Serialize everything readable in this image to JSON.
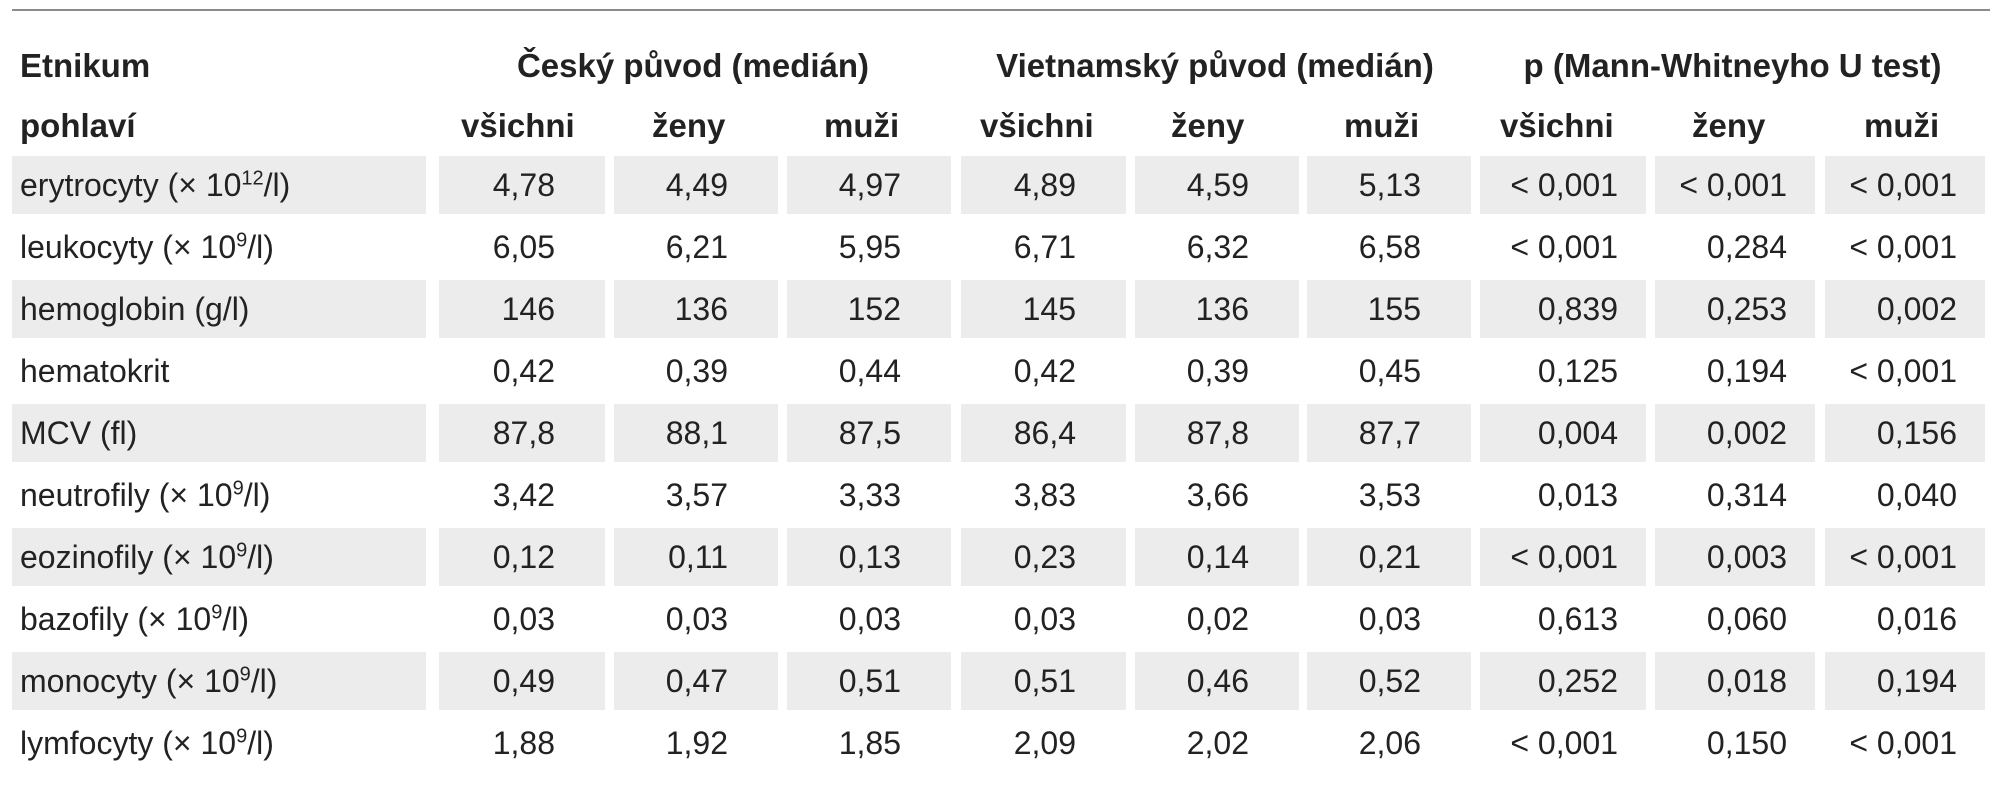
{
  "header": {
    "col0_line1": "Etnikum",
    "col0_line2": "pohlaví",
    "groups": [
      "Český původ (medián)",
      "Vietnamský původ (medián)",
      "p (Mann-Whitneyho U test)"
    ],
    "subheaders": [
      "všichni",
      "ženy",
      "muži",
      "všichni",
      "ženy",
      "muži",
      "všichni",
      "ženy",
      "muži"
    ]
  },
  "rows": [
    {
      "label": "erytrocyty (× 10",
      "label_sup": "12",
      "label_tail": "/l)",
      "values": [
        "4,78",
        "4,49",
        "4,97",
        "4,89",
        "4,59",
        "5,13",
        "< 0,001",
        "< 0,001",
        "< 0,001"
      ]
    },
    {
      "label": "leukocyty (× 10",
      "label_sup": "9",
      "label_tail": "/l)",
      "values": [
        "6,05",
        "6,21",
        "5,95",
        "6,71",
        "6,32",
        "6,58",
        "< 0,001",
        "0,284",
        "< 0,001"
      ]
    },
    {
      "label": "hemoglobin (g/l)",
      "label_sup": "",
      "label_tail": "",
      "values": [
        "146",
        "136",
        "152",
        "145",
        "136",
        "155",
        "0,839",
        "0,253",
        "0,002"
      ]
    },
    {
      "label": "hematokrit",
      "label_sup": "",
      "label_tail": "",
      "values": [
        "0,42",
        "0,39",
        "0,44",
        "0,42",
        "0,39",
        "0,45",
        "0,125",
        "0,194",
        "< 0,001"
      ]
    },
    {
      "label": "MCV (fl)",
      "label_sup": "",
      "label_tail": "",
      "values": [
        "87,8",
        "88,1",
        "87,5",
        "86,4",
        "87,8",
        "87,7",
        "0,004",
        "0,002",
        "0,156"
      ]
    },
    {
      "label": "neutrofily (× 10",
      "label_sup": "9",
      "label_tail": "/l)",
      "values": [
        "3,42",
        "3,57",
        "3,33",
        "3,83",
        "3,66",
        "3,53",
        "0,013",
        "0,314",
        "0,040"
      ]
    },
    {
      "label": "eozinofily (× 10",
      "label_sup": "9",
      "label_tail": "/l)",
      "values": [
        "0,12",
        "0,11",
        "0,13",
        "0,23",
        "0,14",
        "0,21",
        "< 0,001",
        "0,003",
        "< 0,001"
      ]
    },
    {
      "label": "bazofily (× 10",
      "label_sup": "9",
      "label_tail": "/l)",
      "values": [
        "0,03",
        "0,03",
        "0,03",
        "0,03",
        "0,02",
        "0,03",
        "0,613",
        "0,060",
        "0,016"
      ]
    },
    {
      "label": "monocyty (× 10",
      "label_sup": "9",
      "label_tail": "/l)",
      "values": [
        "0,49",
        "0,47",
        "0,51",
        "0,51",
        "0,46",
        "0,52",
        "0,252",
        "0,018",
        "0,194"
      ]
    },
    {
      "label": "lymfocyty (× 10",
      "label_sup": "9",
      "label_tail": "/l)",
      "values": [
        "1,88",
        "1,92",
        "1,85",
        "2,09",
        "2,02",
        "2,06",
        "< 0,001",
        "0,150",
        "< 0,001"
      ]
    }
  ]
}
